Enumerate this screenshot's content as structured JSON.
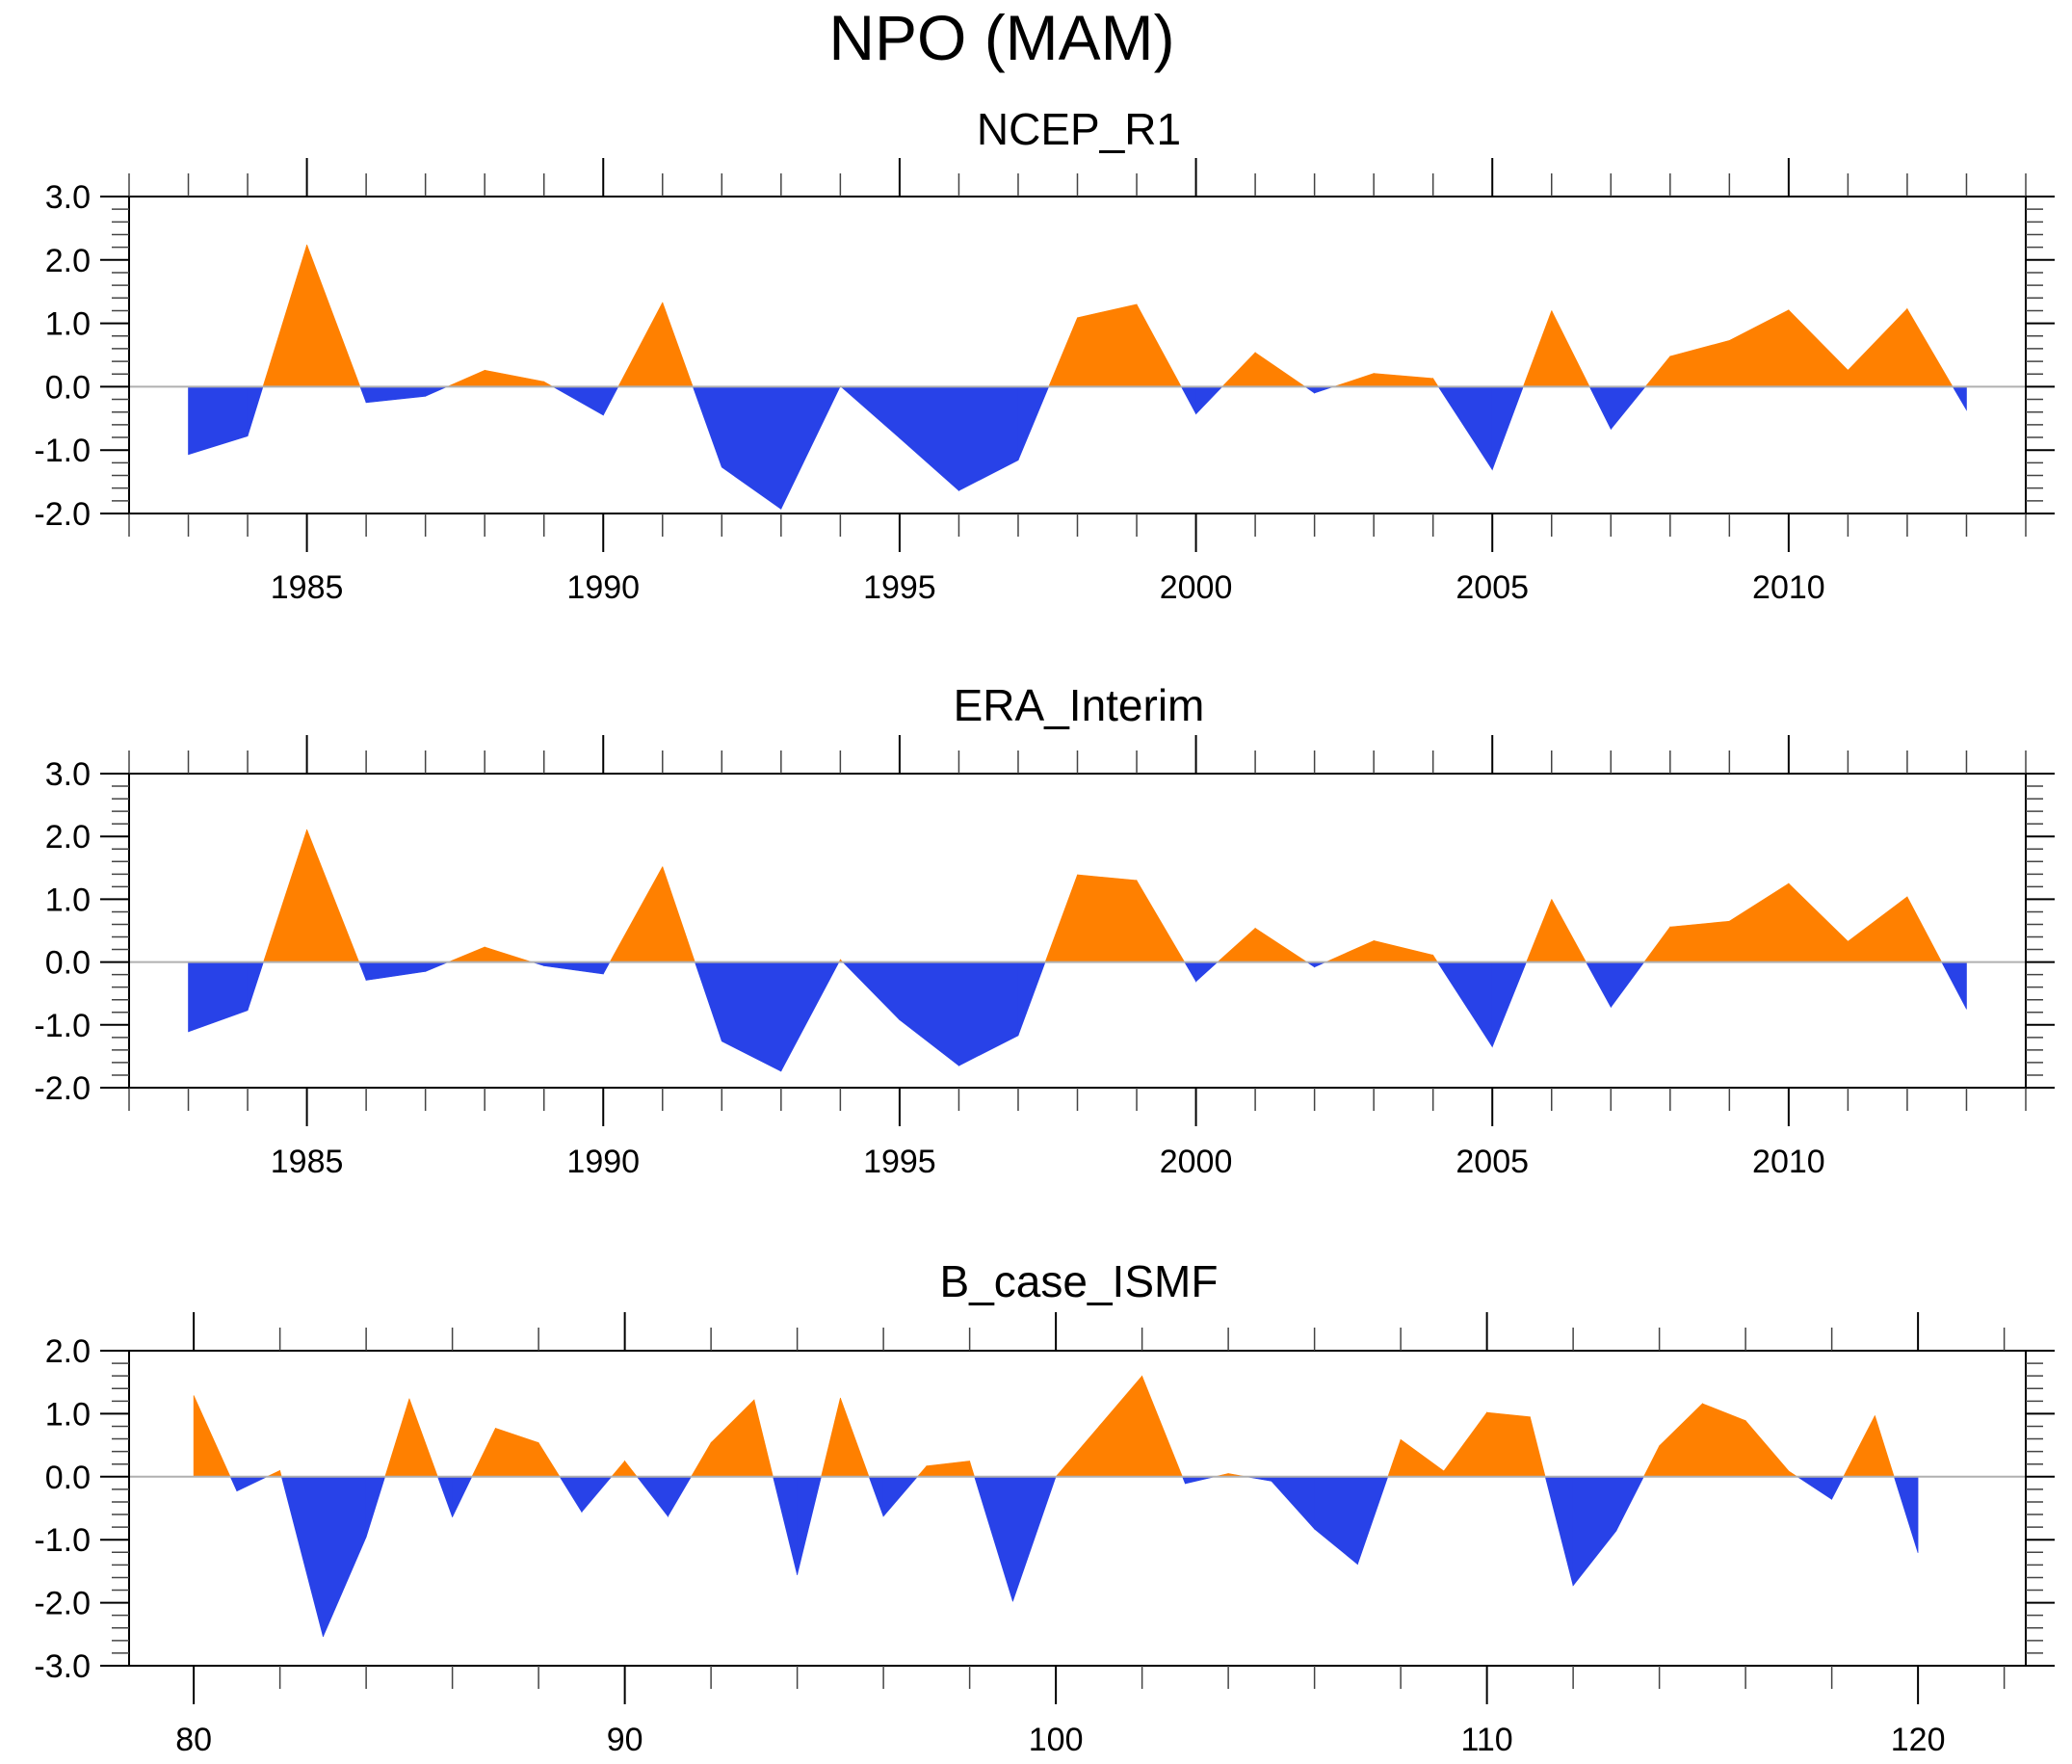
{
  "figure": {
    "title": "NPO (MAM)",
    "colors": {
      "positive": "#ff8000",
      "negative": "#2842e8",
      "axis": "#000000",
      "zero_line": "#b0b0b0"
    }
  },
  "chart_data": [
    {
      "type": "area",
      "title": "NCEP_R1",
      "xlabel": "",
      "ylabel": "",
      "xlim": [
        1982,
        2014
      ],
      "ylim": [
        -2.0,
        3.0
      ],
      "x_major_ticks": [
        1985,
        1990,
        1995,
        2000,
        2005,
        2010
      ],
      "x_tick_labels": [
        "1985",
        "1990",
        "1995",
        "2000",
        "2005",
        "2010"
      ],
      "x_minor_step": 1,
      "y_major_ticks": [
        3.0,
        2.0,
        1.0,
        0.0,
        -1.0,
        -2.0
      ],
      "y_tick_labels": [
        "3.0",
        "2.0",
        "1.0",
        "0.0",
        "-1.0",
        "-2.0"
      ],
      "y_minor_step": 0.2,
      "grid": false,
      "x": [
        1983,
        1984,
        1985,
        1986,
        1987,
        1988,
        1989,
        1990,
        1991,
        1992,
        1993,
        1994,
        1995,
        1996,
        1997,
        1998,
        1999,
        2000,
        2001,
        2002,
        2003,
        2004,
        2005,
        2006,
        2007,
        2008,
        2009,
        2010,
        2011,
        2012,
        2013
      ],
      "values": [
        -1.07,
        -0.78,
        2.24,
        -0.25,
        -0.15,
        0.26,
        0.08,
        -0.45,
        1.33,
        -1.27,
        -1.93,
        0.01,
        -0.81,
        -1.64,
        -1.16,
        1.09,
        1.3,
        -0.43,
        0.54,
        -0.1,
        0.21,
        0.13,
        -1.31,
        1.2,
        -0.67,
        0.48,
        0.73,
        1.21,
        0.26,
        1.23,
        -0.37
      ]
    },
    {
      "type": "area",
      "title": "ERA_Interim",
      "xlabel": "",
      "ylabel": "",
      "xlim": [
        1982,
        2014
      ],
      "ylim": [
        -2.0,
        3.0
      ],
      "x_major_ticks": [
        1985,
        1990,
        1995,
        2000,
        2005,
        2010
      ],
      "x_tick_labels": [
        "1985",
        "1990",
        "1995",
        "2000",
        "2005",
        "2010"
      ],
      "x_minor_step": 1,
      "y_major_ticks": [
        3.0,
        2.0,
        1.0,
        0.0,
        -1.0,
        -2.0
      ],
      "y_tick_labels": [
        "3.0",
        "2.0",
        "1.0",
        "0.0",
        "-1.0",
        "-2.0"
      ],
      "y_minor_step": 0.2,
      "grid": false,
      "x": [
        1983,
        1984,
        1985,
        1986,
        1987,
        1988,
        1989,
        1990,
        1991,
        1992,
        1993,
        1994,
        1995,
        1996,
        1997,
        1998,
        1999,
        2000,
        2001,
        2002,
        2003,
        2004,
        2005,
        2006,
        2007,
        2008,
        2009,
        2010,
        2011,
        2012,
        2013
      ],
      "values": [
        -1.11,
        -0.77,
        2.11,
        -0.29,
        -0.15,
        0.24,
        -0.06,
        -0.19,
        1.52,
        -1.26,
        -1.74,
        0.04,
        -0.92,
        -1.65,
        -1.17,
        1.39,
        1.3,
        -0.31,
        0.54,
        -0.08,
        0.34,
        0.11,
        -1.35,
        1.0,
        -0.72,
        0.56,
        0.65,
        1.25,
        0.33,
        1.04,
        -0.75
      ]
    },
    {
      "type": "area",
      "title": "B_case_ISMF",
      "xlabel": "",
      "ylabel": "",
      "xlim": [
        78.5,
        122.5
      ],
      "ylim": [
        -3.0,
        2.0
      ],
      "x_major_ticks": [
        80,
        90,
        100,
        110,
        120
      ],
      "x_tick_labels": [
        "80",
        "90",
        "100",
        "110",
        "120"
      ],
      "x_minor_step": 2,
      "y_major_ticks": [
        2.0,
        1.0,
        0.0,
        -1.0,
        -2.0,
        -3.0
      ],
      "y_tick_labels": [
        "2.0",
        "1.0",
        "0.0",
        "-1.0",
        "-2.0",
        "-3.0"
      ],
      "y_minor_step": 0.2,
      "grid": false,
      "x": [
        80,
        81,
        82,
        83,
        84,
        85,
        86,
        87,
        88,
        89,
        90,
        91,
        92,
        93,
        94,
        95,
        96,
        97,
        98,
        99,
        100,
        101,
        102,
        103,
        104,
        105,
        106,
        107,
        108,
        109,
        110,
        111,
        112,
        113,
        114,
        115,
        116,
        117,
        118,
        119,
        120
      ],
      "values": [
        1.29,
        -0.23,
        0.1,
        -2.54,
        -0.96,
        1.24,
        -0.64,
        0.77,
        0.54,
        -0.56,
        0.25,
        -0.63,
        0.54,
        1.22,
        -1.56,
        1.25,
        -0.63,
        0.17,
        0.25,
        -1.98,
        0.0,
        0.8,
        1.6,
        -0.11,
        0.05,
        -0.07,
        -0.83,
        -1.39,
        0.59,
        0.09,
        1.02,
        0.95,
        -1.73,
        -0.86,
        0.49,
        1.16,
        0.89,
        0.09,
        -0.36,
        0.97,
        -1.21
      ]
    }
  ]
}
